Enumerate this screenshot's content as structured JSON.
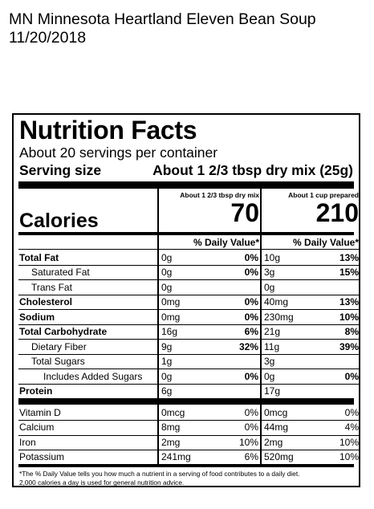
{
  "page": {
    "title": "MN Minnesota Heartland Eleven Bean Soup",
    "date": "11/20/2018"
  },
  "label": {
    "heading": "Nutrition Facts",
    "servings": "About 20 servings per container",
    "serving_size_label": "Serving size",
    "serving_size_value": "About 1 2/3 tbsp dry mix (25g)",
    "col1_header": "About 1 2/3 tbsp dry mix",
    "col2_header": "About 1 cup prepared",
    "calories_label": "Calories",
    "calories_col1": "70",
    "calories_col2": "210",
    "dv_header": "% Daily Value*",
    "nutrients": [
      {
        "name": "Total Fat",
        "a1": "0g",
        "p1": "0%",
        "a2": "10g",
        "p2": "13%"
      },
      {
        "name": "Saturated Fat",
        "a1": "0g",
        "p1": "0%",
        "a2": "3g",
        "p2": "15%"
      },
      {
        "name": "Trans Fat",
        "a1": "0g",
        "p1": "",
        "a2": "0g",
        "p2": ""
      },
      {
        "name": "Cholesterol",
        "a1": "0mg",
        "p1": "0%",
        "a2": "40mg",
        "p2": "13%"
      },
      {
        "name": "Sodium",
        "a1": "0mg",
        "p1": "0%",
        "a2": "230mg",
        "p2": "10%"
      },
      {
        "name": "Total Carbohydrate",
        "a1": "16g",
        "p1": "6%",
        "a2": "21g",
        "p2": "8%"
      },
      {
        "name": "Dietary Fiber",
        "a1": "9g",
        "p1": "32%",
        "a2": "11g",
        "p2": "39%"
      },
      {
        "name": "Total Sugars",
        "a1": "1g",
        "p1": "",
        "a2": "3g",
        "p2": ""
      },
      {
        "name": "Includes Added Sugars",
        "a1": "0g",
        "p1": "0%",
        "a2": "0g",
        "p2": "0%"
      },
      {
        "name": "Protein",
        "a1": "6g",
        "p1": "",
        "a2": "17g",
        "p2": ""
      }
    ],
    "vitamins": [
      {
        "name": "Vitamin D",
        "a1": "0mcg",
        "p1": "0%",
        "a2": "0mcg",
        "p2": "0%"
      },
      {
        "name": "Calcium",
        "a1": "8mg",
        "p1": "0%",
        "a2": "44mg",
        "p2": "4%"
      },
      {
        "name": "Iron",
        "a1": "2mg",
        "p1": "10%",
        "a2": "2mg",
        "p2": "10%"
      },
      {
        "name": "Potassium",
        "a1": "241mg",
        "p1": "6%",
        "a2": "520mg",
        "p2": "10%"
      }
    ],
    "footnote_line1": "*The % Daily Value tells you how much a nutrient in a serving of food contributes to a daily diet.",
    "footnote_line2": "2,000 calories a day is used for general nutrition advice."
  }
}
